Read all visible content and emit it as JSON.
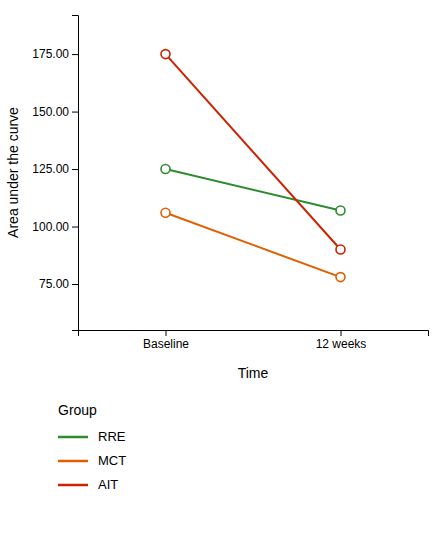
{
  "chart_data": {
    "type": "line",
    "categories": [
      "Baseline",
      "12 weeks"
    ],
    "series": [
      {
        "name": "RRE",
        "color": "#2e8b2e",
        "values": [
          125,
          107
        ]
      },
      {
        "name": "MCT",
        "color": "#e06000",
        "values": [
          106,
          78
        ]
      },
      {
        "name": "AIT",
        "color": "#cc2200",
        "values": [
          175,
          90
        ]
      }
    ],
    "xlabel": "Time",
    "ylabel": "Area under the curve",
    "ylim": [
      55,
      192
    ],
    "yticks": [
      {
        "value": 75,
        "label": "75.00"
      },
      {
        "value": 100,
        "label": "100.00"
      },
      {
        "value": 125,
        "label": "125.00"
      },
      {
        "value": 150,
        "label": "150.00"
      },
      {
        "value": 175,
        "label": "175.00"
      }
    ],
    "marker": "circle",
    "legend": "bottom",
    "legend_title": "Group",
    "grid": false
  }
}
